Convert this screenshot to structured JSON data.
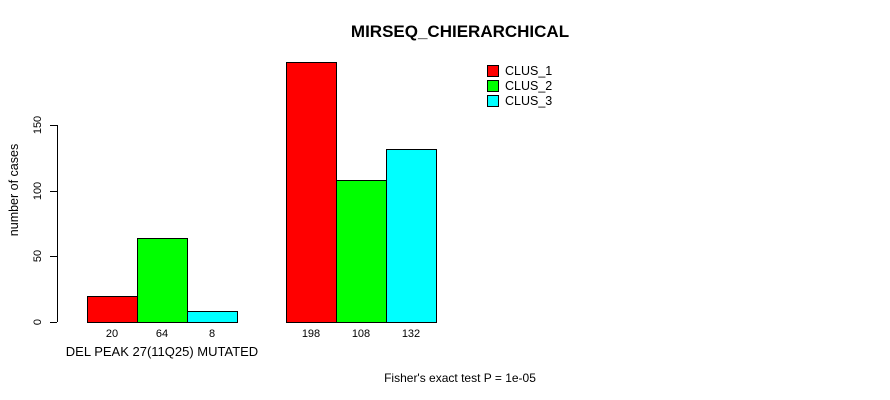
{
  "chart": {
    "title": "MIRSEQ_CHIERARCHICAL",
    "ylabel": "number of cases",
    "xlabel": "DEL PEAK 27(11Q25) MUTATED",
    "footnote": "Fisher's exact test P = 1e-05"
  },
  "chart_data": {
    "type": "bar",
    "title": "MIRSEQ_CHIERARCHICAL",
    "xlabel": "DEL PEAK 27(11Q25) MUTATED",
    "ylabel": "number of cases",
    "annotation": "Fisher's exact test P = 1e-05",
    "categories": [
      "DEL PEAK 27(11Q25) MUTATED",
      ""
    ],
    "series": [
      {
        "name": "CLUS_1",
        "color": "#FF0000",
        "values": [
          20,
          198
        ]
      },
      {
        "name": "CLUS_2",
        "color": "#00FF00",
        "values": [
          64,
          108
        ]
      },
      {
        "name": "CLUS_3",
        "color": "#00FFFF",
        "values": [
          8,
          132
        ]
      }
    ],
    "yticks": [
      0,
      50,
      100,
      150
    ],
    "axis_range": [
      0,
      150
    ],
    "grid": false,
    "legend_position": "top-right",
    "bar_border_color": "#000000",
    "background_color": "#FFFFFF"
  }
}
